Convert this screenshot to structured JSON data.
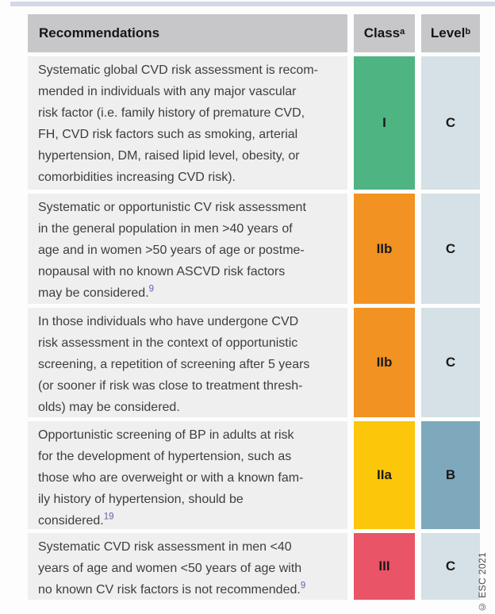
{
  "page": {
    "copyright": "© ESC 2021",
    "accent_line_color": "#d4d8e6",
    "background_color": "#fdfdfd"
  },
  "header": {
    "recommendations": "Recommendations",
    "class_label": "Class",
    "class_sup": "a",
    "level_label": "Level",
    "level_sup": "b",
    "background_color": "#c7c7c9"
  },
  "rows": [
    {
      "text": "Systematic global CVD risk assessment is recom-\nmended in individuals with any major vascular\nrisk factor (i.e. family history of premature CVD,\nFH, CVD risk factors such as smoking, arterial\nhypertension, DM, raised lipid level, obesity, or\ncomorbidities increasing CVD risk).",
      "ref": "",
      "class": "I",
      "level": "C",
      "class_color": "#4db482",
      "level_color": "#d5e1e6",
      "row_color": "#efeff0"
    },
    {
      "text": "Systematic or opportunistic CV risk assessment\nin the general population in men >40 years of\nage and in women >50 years of age or postme-\nnopausal with no known ASCVD risk factors\nmay be considered.",
      "ref": "9",
      "class": "IIb",
      "level": "C",
      "class_color": "#f29222",
      "level_color": "#d5e1e6",
      "row_color": "#efeff0"
    },
    {
      "text": "In those individuals who have undergone CVD\nrisk assessment in the context of opportunistic\nscreening, a repetition of screening after 5 years\n(or sooner if risk was close to treatment thresh-\nolds) may be considered.",
      "ref": "",
      "class": "IIb",
      "level": "C",
      "class_color": "#f29222",
      "level_color": "#d5e1e6",
      "row_color": "#efeff0"
    },
    {
      "text": "Opportunistic screening of BP in adults at risk\nfor the development of hypertension, such as\nthose who are overweight or with a known fam-\nily history of hypertension, should be\nconsidered.",
      "ref": "19",
      "class": "IIa",
      "level": "B",
      "class_color": "#fcc60a",
      "level_color": "#7ea9bd",
      "row_color": "#efeff0"
    },
    {
      "text": "Systematic CVD risk assessment in men <40\nyears of age and women <50 years of age with\nno known CV risk factors is not recommended.",
      "ref": "9",
      "class": "III",
      "level": "C",
      "class_color": "#e95466",
      "level_color": "#d5e1e6",
      "row_color": "#efeff0"
    }
  ]
}
